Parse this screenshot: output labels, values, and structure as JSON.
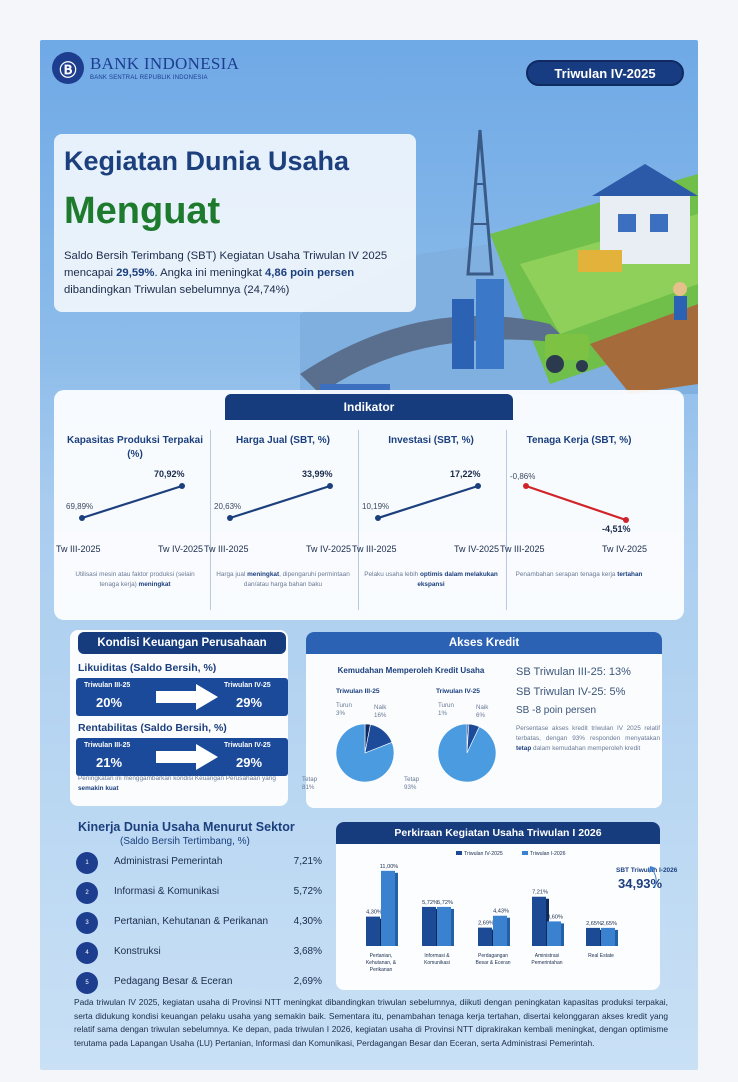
{
  "header": {
    "logo_mark": "Ⓑ",
    "bank_name": "BANK INDONESIA",
    "bank_sub": "BANK SENTRAL REPUBLIK INDONESIA",
    "period": "Triwulan IV-2025"
  },
  "hero": {
    "title_line1": "Kegiatan Dunia Usaha",
    "title_line2": "Menguat",
    "intro_a": "Saldo Bersih Terimbang (SBT) Kegiatan Usaha Triwulan IV 2025 mencapai ",
    "intro_b": "29,59%",
    "intro_c": ". Angka ini meningkat ",
    "intro_d": "4,86 poin persen",
    "intro_e": " dibandingkan Triwulan sebelumnya (24,74%)"
  },
  "indikator": {
    "heading": "Indikator",
    "columns": [
      {
        "title": "Kapasitas Produksi Terpakai (%)",
        "v1": "69,89%",
        "v2": "70,92%",
        "y1": 69.89,
        "y2": 70.92,
        "trend": "up",
        "color": "#1c3f7d",
        "desc_a": "Utilisasi mesin atau faktor produksi (selain tenaga kerja) ",
        "desc_b": "meningkat",
        "desc_c": ""
      },
      {
        "title": "Harga Jual (SBT, %)",
        "v1": "20,63%",
        "v2": "33,99%",
        "y1": 20.63,
        "y2": 33.99,
        "trend": "up",
        "color": "#1c3f7d",
        "desc_a": "Harga jual ",
        "desc_b": "meningkat",
        "desc_c": ", dipengaruhi permintaan dan/atau harga bahan baku"
      },
      {
        "title": "Investasi (SBT, %)",
        "v1": "10,19%",
        "v2": "17,22%",
        "y1": 10.19,
        "y2": 17.22,
        "trend": "up",
        "color": "#1c3f7d",
        "desc_a": "Pelaku usaha lebih ",
        "desc_b": "optimis dalam melakukan ekspansi",
        "desc_c": ""
      },
      {
        "title": "Tenaga Kerja (SBT, %)",
        "v1": "-0,86%",
        "v2": "-4,51%",
        "y1": -0.86,
        "y2": -4.51,
        "trend": "down",
        "color": "#d1242a",
        "desc_a": "Penambahan serapan tenaga kerja ",
        "desc_b": "tertahan",
        "desc_c": ""
      }
    ],
    "x_start": "Tw III-2025",
    "x_end": "Tw IV-2025"
  },
  "kondisi": {
    "heading": "Kondisi Keuangan Perusahaan",
    "likuiditas": {
      "label": "Likuiditas (Saldo Bersih, %)",
      "from_label": "Triwulan III-25",
      "from_value": "20%",
      "to_label": "Triwulan IV-25",
      "to_value": "29%"
    },
    "rentabilitas": {
      "label": "Rentabilitas (Saldo Bersih, %)",
      "from_label": "Triwulan III-25",
      "from_value": "21%",
      "to_label": "Triwulan IV-25",
      "to_value": "29%"
    },
    "desc_a": "Peningkatan ini menggambarkan kondisi Keuangan Perusahaan yang ",
    "desc_b": "semakin kuat"
  },
  "akses": {
    "heading": "Akses Kredit",
    "subheading": "Kemudahan Memperoleh Kredit Usaha",
    "pies": [
      {
        "label": "Triwulan III-25",
        "turun_label": "Turun",
        "turun": "3%",
        "naik_label": "Naik",
        "naik": "16%",
        "tetap_label": "Tetap",
        "tetap": "81%",
        "shares": [
          3,
          16,
          81
        ]
      },
      {
        "label": "Triwulan IV-25",
        "turun_label": "Turun",
        "turun": "1%",
        "naik_label": "Naik",
        "naik": "6%",
        "tetap_label": "Tetap",
        "tetap": "93%",
        "shares": [
          1,
          6,
          93
        ]
      }
    ],
    "sb1": "SB Triwulan III-25: 13%",
    "sb2": "SB Triwulan IV-25: 5%",
    "sb3": "SB -8 poin persen",
    "desc_a": "Persentase akses kredit triwulan IV 2025 relatif terbatas, dengan 93% responden menyatakan ",
    "desc_b": "tetap",
    "desc_c": " dalam kemudahan memperoleh kredit"
  },
  "sektor": {
    "title": "Kinerja Dunia Usaha Menurut Sektor",
    "subtitle": "(Saldo Bersih Tertimbang, %)",
    "items": [
      {
        "num": "1",
        "name": "Administrasi Pemerintah",
        "value": "7,21%"
      },
      {
        "num": "2",
        "name": "Informasi & Komunikasi",
        "value": "5,72%"
      },
      {
        "num": "3",
        "name": "Pertanian, Kehutanan & Perikanan",
        "value": "4,30%"
      },
      {
        "num": "4",
        "name": "Konstruksi",
        "value": "3,68%"
      },
      {
        "num": "5",
        "name": "Pedagang Besar & Eceran",
        "value": "2,69%"
      }
    ]
  },
  "perkiraan": {
    "heading": "Perkiraan Kegiatan Usaha Triwulan I 2026",
    "sbt_label": "SBT Triwulan I-2026",
    "sbt_value": "34,93%"
  },
  "chart_data": {
    "type": "bar",
    "title": "Perkiraan Kegiatan Usaha Triwulan I 2026",
    "categories": [
      [
        "Pertanian,",
        "Kehutanan, &",
        "Perikanan"
      ],
      [
        "Informasi &",
        "Komunikasi"
      ],
      [
        "Perdagangan",
        "Besar & Eceran"
      ],
      [
        "Aministrasi",
        "Pemerintahan"
      ],
      [
        "Real Estate"
      ]
    ],
    "series": [
      {
        "name": "Triwulan IV-2025",
        "values": [
          4.3,
          5.72,
          2.69,
          7.21,
          2.65
        ],
        "labels": [
          "4,30%",
          "5,72%",
          "2,69%",
          "7,21%",
          "2,65%"
        ],
        "color": "#1c4a94"
      },
      {
        "name": "Triwulan I-2026",
        "values": [
          11.0,
          5.72,
          4.43,
          3.6,
          2.65
        ],
        "labels": [
          "11,00%",
          "5,72%",
          "4,43%",
          "3,60%",
          "2,65%"
        ],
        "color": "#3a82d0"
      }
    ],
    "ylim": [
      0,
      12
    ],
    "legend": "top"
  },
  "footer": {
    "text": "Pada triwulan IV 2025, kegiatan usaha di Provinsi NTT meningkat dibandingkan triwulan sebelumnya, diikuti dengan peningkatan kapasitas produksi terpakai, serta didukung kondisi keuangan pelaku usaha yang semakin baik. Sementara itu, penambahan tenaga kerja tertahan, disertai kelonggaran akses kredit yang relatif sama dengan triwulan sebelumnya. Ke depan, pada triwulan I 2026, kegiatan usaha di Provinsi NTT diprakirakan kembali meningkat, dengan optimisme terutama pada Lapangan Usaha (LU) Pertanian, Informasi dan Komunikasi, Perdagangan Besar dan Eceran, serta Administrasi Pemerintah."
  },
  "colors": {
    "navy": "#163c7e",
    "green": "#1e7a2d",
    "red": "#d1242a",
    "accent": "#3a82d0"
  }
}
